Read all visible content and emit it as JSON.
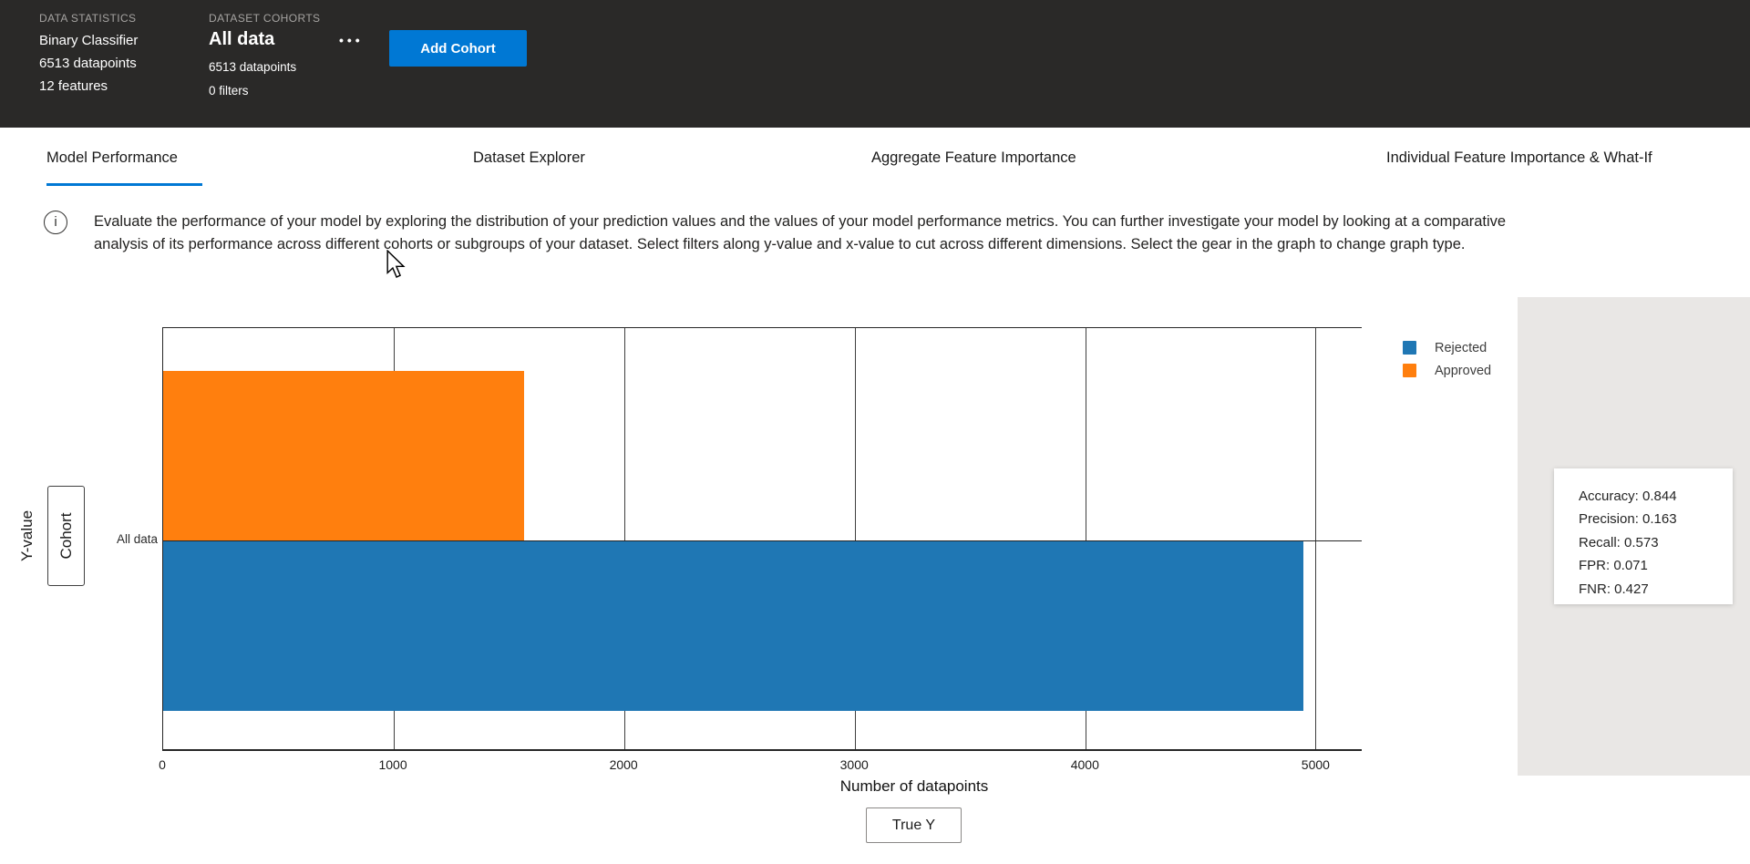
{
  "accent_color": "#0078d4",
  "header": {
    "background": "#2a2928",
    "data_statistics": {
      "label": "DATA STATISTICS",
      "model_type": "Binary Classifier",
      "datapoints": "6513 datapoints",
      "features": "12 features"
    },
    "dataset_cohorts": {
      "label": "DATASET COHORTS",
      "cohort_name": "All data",
      "datapoints": "6513 datapoints",
      "filters": "0 filters",
      "more_label": "•••"
    },
    "add_cohort_button": "Add Cohort"
  },
  "tabs": [
    {
      "label": "Model Performance",
      "active": true
    },
    {
      "label": "Dataset Explorer",
      "active": false
    },
    {
      "label": "Aggregate Feature Importance",
      "active": false
    },
    {
      "label": "Individual Feature Importance & What-If",
      "active": false
    }
  ],
  "info": {
    "text": "Evaluate the performance of your model by exploring the distribution of your prediction values and the values of your model performance metrics. You can further investigate your model by looking at a comparative analysis of its performance across different cohorts or subgroups of your dataset. Select filters along y-value and x-value to cut across different dimensions. Select the gear in the graph to change graph type."
  },
  "chart": {
    "y_axis_label": "Y-value",
    "y_axis_button": "Cohort",
    "x_axis_button": "True Y"
  },
  "chart_data": {
    "type": "bar",
    "orientation": "horizontal",
    "title": "",
    "xlabel": "Number of datapoints",
    "ylabel": "Y-value",
    "categories": [
      "All data"
    ],
    "series": [
      {
        "name": "Rejected",
        "values": [
          4947
        ],
        "color": "#1f77b4"
      },
      {
        "name": "Approved",
        "values": [
          1566
        ],
        "color": "#ff7f0e"
      }
    ],
    "xlim": [
      0,
      5200
    ],
    "xticks": [
      0,
      1000,
      2000,
      3000,
      4000,
      5000
    ],
    "grid": true,
    "legend_position": "top-right"
  },
  "metrics_panel": {
    "rows": [
      "Accuracy: 0.844",
      "Precision: 0.163",
      "Recall: 0.573",
      "FPR: 0.071",
      "FNR: 0.427"
    ]
  }
}
